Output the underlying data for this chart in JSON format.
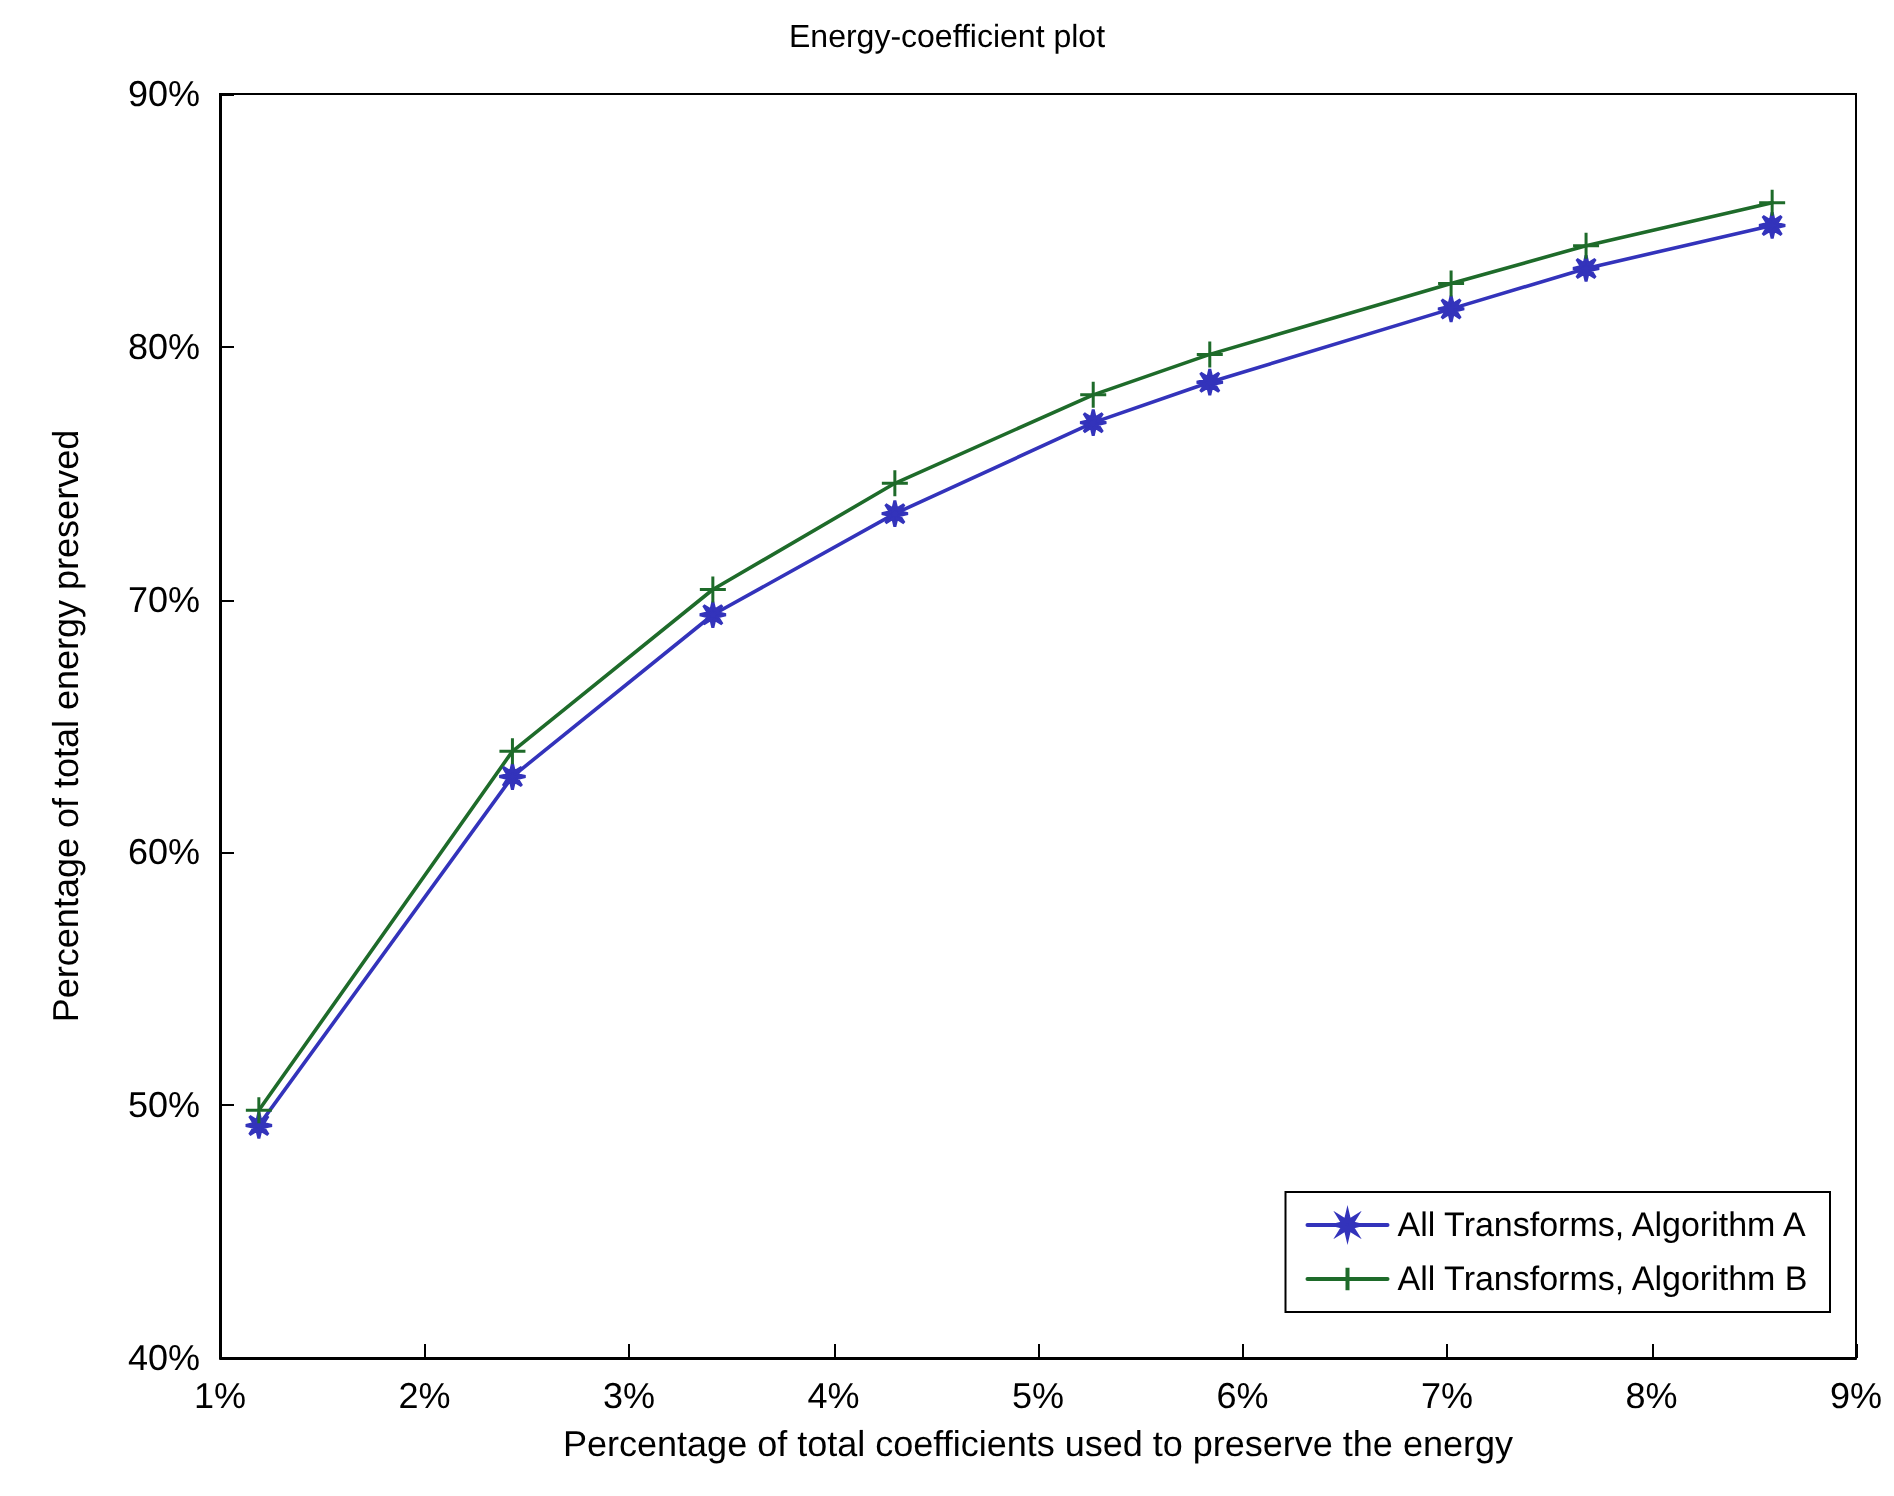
{
  "chart_data": {
    "type": "line",
    "title": "Energy-coefficient plot",
    "xlabel": "Percentage of total coefficients used to preserve the energy",
    "ylabel": "Percentage of total energy preserved",
    "x": [
      1.19,
      2.43,
      3.41,
      4.3,
      5.27,
      5.84,
      7.02,
      7.68,
      8.59
    ],
    "series": [
      {
        "name": "All Transforms, Algorithm A",
        "color": "#3333bb",
        "marker": "star",
        "values": [
          49.2,
          63.0,
          69.4,
          73.4,
          77.0,
          78.6,
          81.5,
          83.1,
          84.8
        ]
      },
      {
        "name": "All Transforms, Algorithm B",
        "color": "#1e6b2a",
        "marker": "cross",
        "values": [
          49.8,
          64.0,
          70.4,
          74.6,
          78.1,
          79.7,
          82.5,
          84.0,
          85.7
        ]
      }
    ],
    "xlim": [
      1,
      9
    ],
    "xticks": [
      {
        "value": 1,
        "label": "1%"
      },
      {
        "value": 2,
        "label": "2%"
      },
      {
        "value": 3,
        "label": "3%"
      },
      {
        "value": 4,
        "label": "4%"
      },
      {
        "value": 5,
        "label": "5%"
      },
      {
        "value": 6,
        "label": "6%"
      },
      {
        "value": 7,
        "label": "7%"
      },
      {
        "value": 8,
        "label": "8%"
      },
      {
        "value": 9,
        "label": "9%"
      }
    ],
    "ylim": [
      40,
      90
    ],
    "yticks": [
      {
        "value": 40,
        "label": "40%"
      },
      {
        "value": 50,
        "label": "50%"
      },
      {
        "value": 60,
        "label": "60%"
      },
      {
        "value": 70,
        "label": "70%"
      },
      {
        "value": 80,
        "label": "80%"
      },
      {
        "value": 90,
        "label": "90%"
      }
    ],
    "grid": false,
    "legend": "bottom right",
    "line_style": "solid"
  }
}
